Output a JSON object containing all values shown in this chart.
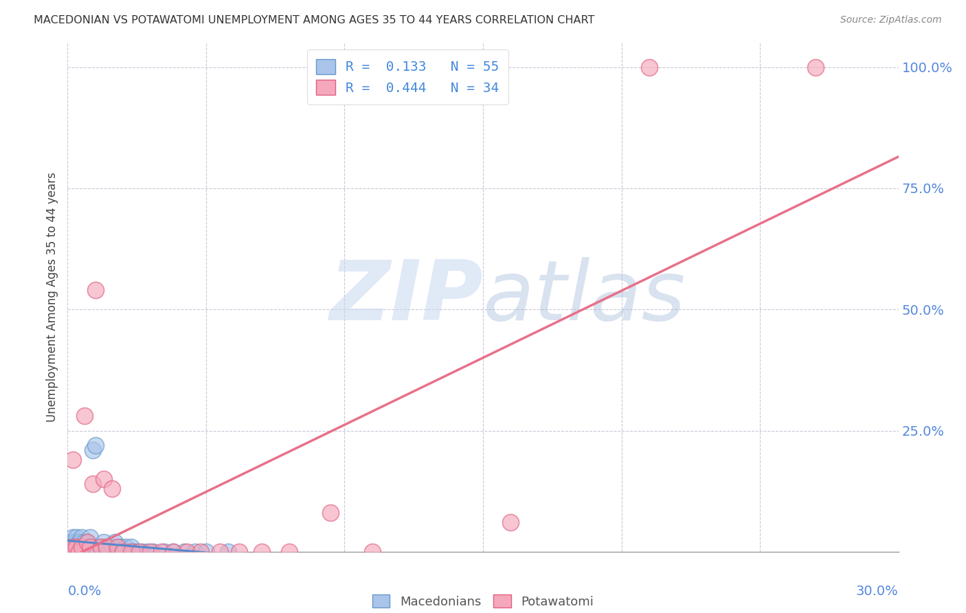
{
  "title": "MACEDONIAN VS POTAWATOMI UNEMPLOYMENT AMONG AGES 35 TO 44 YEARS CORRELATION CHART",
  "source": "Source: ZipAtlas.com",
  "ylabel": "Unemployment Among Ages 35 to 44 years",
  "R1": 0.133,
  "N1": 55,
  "R2": 0.444,
  "N2": 34,
  "mac_color": "#aac4ea",
  "pot_color": "#f5a8bc",
  "mac_edge_color": "#6699cc",
  "pot_edge_color": "#e06080",
  "mac_line_color": "#5588cc",
  "pot_line_color": "#e8708a",
  "background_color": "#ffffff",
  "watermark_color": "#c8d8f0",
  "xlim": [
    0.0,
    0.3
  ],
  "ylim": [
    0.0,
    1.05
  ],
  "legend1_label": "Macedonians",
  "legend2_label": "Potawatomi",
  "mac_x": [
    0.0,
    0.0,
    0.001,
    0.001,
    0.001,
    0.002,
    0.002,
    0.002,
    0.002,
    0.003,
    0.003,
    0.003,
    0.003,
    0.004,
    0.004,
    0.004,
    0.005,
    0.005,
    0.005,
    0.005,
    0.006,
    0.006,
    0.006,
    0.007,
    0.007,
    0.008,
    0.008,
    0.009,
    0.009,
    0.01,
    0.01,
    0.011,
    0.012,
    0.013,
    0.014,
    0.015,
    0.016,
    0.017,
    0.018,
    0.019,
    0.02,
    0.021,
    0.022,
    0.023,
    0.024,
    0.025,
    0.027,
    0.029,
    0.031,
    0.035,
    0.038,
    0.042,
    0.046,
    0.05,
    0.058
  ],
  "mac_y": [
    0.0,
    0.01,
    0.0,
    0.01,
    0.02,
    0.0,
    0.01,
    0.02,
    0.03,
    0.0,
    0.01,
    0.02,
    0.03,
    0.0,
    0.01,
    0.02,
    0.0,
    0.01,
    0.02,
    0.03,
    0.0,
    0.01,
    0.02,
    0.0,
    0.02,
    0.01,
    0.03,
    0.0,
    0.21,
    0.01,
    0.22,
    0.0,
    0.01,
    0.02,
    0.01,
    0.0,
    0.01,
    0.02,
    0.0,
    0.01,
    0.0,
    0.01,
    0.0,
    0.01,
    0.0,
    0.0,
    0.0,
    0.0,
    0.0,
    0.0,
    0.0,
    0.0,
    0.0,
    0.0,
    0.0
  ],
  "pot_x": [
    0.0,
    0.001,
    0.002,
    0.002,
    0.003,
    0.004,
    0.005,
    0.006,
    0.007,
    0.008,
    0.009,
    0.01,
    0.012,
    0.013,
    0.014,
    0.016,
    0.018,
    0.02,
    0.023,
    0.026,
    0.03,
    0.034,
    0.038,
    0.043,
    0.048,
    0.055,
    0.062,
    0.07,
    0.08,
    0.095,
    0.11,
    0.16,
    0.21,
    0.27
  ],
  "pot_y": [
    0.0,
    0.0,
    0.01,
    0.19,
    0.01,
    0.0,
    0.01,
    0.28,
    0.02,
    0.01,
    0.14,
    0.54,
    0.01,
    0.15,
    0.01,
    0.13,
    0.01,
    0.0,
    0.0,
    0.0,
    0.0,
    0.0,
    0.0,
    0.0,
    0.0,
    0.0,
    0.0,
    0.0,
    0.0,
    0.08,
    0.0,
    0.06,
    1.0,
    1.0
  ]
}
